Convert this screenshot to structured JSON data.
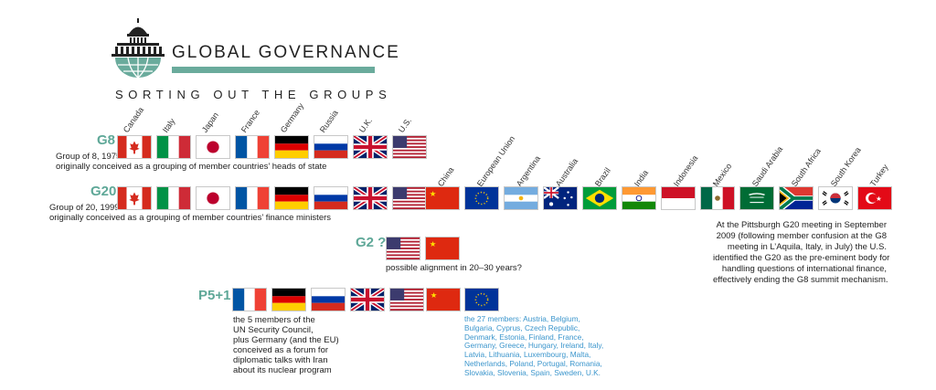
{
  "header": {
    "title": "GLOBAL GOVERNANCE",
    "subtitle": "SORTING OUT THE GROUPS",
    "accent_color": "#6aab9c",
    "logo_icon": "capitol-globe-icon"
  },
  "g8": {
    "label": "G8",
    "desc_line1": "Group of 8, 1975",
    "desc_line2": "originally conceived as a grouping of member countries’ heads of state",
    "countries": [
      "Canada",
      "Italy",
      "Japan",
      "France",
      "Germany",
      "Russia",
      "U.K.",
      "U.S."
    ]
  },
  "g20": {
    "label": "G20",
    "desc_line1": "Group of 20, 1999",
    "desc_line2": "originally conceived as a grouping of member countries’ finance ministers",
    "countries": [
      "China",
      "European Union",
      "Argentina",
      "Australia",
      "Brazil",
      "India",
      "Indonesia",
      "Mexico",
      "Saudi Arabia",
      "South Africa",
      "South Korea",
      "Turkey"
    ],
    "note_lines": [
      "At the Pittsburgh G20 meeting in September",
      "2009 (following member confusion at the G8",
      "meeting in L’Aquila, Italy, in July) the U.S.",
      "identified the G20 as the pre-eminent body for",
      "handling questions of international finance,",
      "effectively ending the G8 summit mechanism."
    ]
  },
  "g2": {
    "label": "G2 ?",
    "desc": "possible alignment in 20–30 years?"
  },
  "p5": {
    "label": "P5+1",
    "desc_lines": [
      "the 5 members of the",
      "UN Security Council,",
      "plus Germany (and the  EU)",
      "conceived as a forum for",
      "diplomatic talks with Iran",
      "about its nuclear program"
    ],
    "eu_lines": [
      "the 27 members: Austria, Belgium,",
      "Bulgaria,  Cyprus, Czech Republic,",
      "Denmark, Estonia, Finland, France,",
      "Germany, Greece, Hungary, Ireland, Italy,",
      "Latvia, Lithuania, Luxembourg, Malta,",
      "Netherlands, Poland, Portugal, Romania,",
      "Slovakia, Slovenia, Spain, Sweden, U.K."
    ],
    "eu_text_color": "#3a95cc"
  }
}
